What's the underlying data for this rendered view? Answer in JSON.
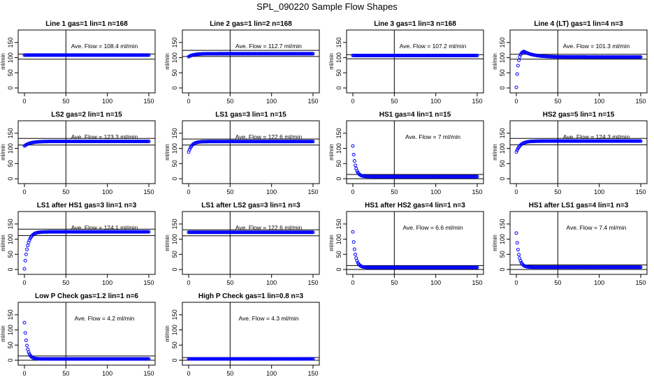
{
  "title": "SPL_090220  Sample Flow Shapes",
  "colors": {
    "points": "#0000ff",
    "axis": "#000000",
    "background": "#ffffff"
  },
  "chart_data": [
    {
      "type": "scatter",
      "title": "Line 1 gas=1 lin=1 n=168",
      "ylabel": "ml/min",
      "annotation": "Ave. Flow =  108.4  ml/min",
      "xlim": [
        0,
        150
      ],
      "ylim": [
        0,
        175
      ],
      "xticks": [
        0,
        50,
        100,
        150
      ],
      "yticks": [
        0,
        50,
        100,
        150
      ],
      "vline": 50,
      "hlines": [
        95,
        112
      ],
      "shape": "flat",
      "plateau": 108.4,
      "start": 108.4,
      "tau": 1
    },
    {
      "type": "scatter",
      "title": "Line 2 gas=1 lin=2 n=168",
      "ylabel": "ml/min",
      "annotation": "Ave. Flow =  112.7  ml/min",
      "xlim": [
        0,
        150
      ],
      "ylim": [
        0,
        175
      ],
      "xticks": [
        0,
        50,
        100,
        150
      ],
      "yticks": [
        0,
        50,
        100,
        150
      ],
      "vline": 50,
      "hlines": [
        104,
        124
      ],
      "shape": "rise",
      "plateau": 113,
      "start": 103,
      "tau": 6
    },
    {
      "type": "scatter",
      "title": "Line 3 gas=1 lin=3 n=168",
      "ylabel": "ml/min",
      "annotation": "Ave. Flow =  107.2  ml/min",
      "xlim": [
        0,
        150
      ],
      "ylim": [
        0,
        175
      ],
      "xticks": [
        0,
        50,
        100,
        150
      ],
      "yticks": [
        0,
        50,
        100,
        150
      ],
      "vline": 50,
      "hlines": [
        96,
        110
      ],
      "shape": "flat",
      "plateau": 107,
      "start": 107,
      "tau": 1
    },
    {
      "type": "scatter",
      "title": "Line 4 (LT) gas=1 lin=4 n=3",
      "ylabel": "ml/min",
      "annotation": "Ave. Flow =  101.3  ml/min",
      "xlim": [
        0,
        150
      ],
      "ylim": [
        0,
        175
      ],
      "xticks": [
        0,
        50,
        100,
        150
      ],
      "yticks": [
        0,
        50,
        100,
        150
      ],
      "vline": 50,
      "hlines": [
        95,
        111
      ],
      "shape": "overshoot",
      "plateau": 102,
      "start": 2,
      "peak": 122,
      "tau": 3
    },
    {
      "type": "scatter",
      "title": "LS2 gas=2 lin=1 n=15",
      "ylabel": "ml/min",
      "annotation": "Ave. Flow =  123.3  ml/min",
      "xlim": [
        0,
        150
      ],
      "ylim": [
        0,
        175
      ],
      "xticks": [
        0,
        50,
        100,
        150
      ],
      "yticks": [
        0,
        50,
        100,
        150
      ],
      "vline": 50,
      "hlines": [
        111,
        133
      ],
      "shape": "rise",
      "plateau": 123,
      "start": 108,
      "tau": 7
    },
    {
      "type": "scatter",
      "title": "LS1 gas=3 lin=1 n=15",
      "ylabel": "ml/min",
      "annotation": "Ave. Flow =  122.6  ml/min",
      "xlim": [
        0,
        150
      ],
      "ylim": [
        0,
        175
      ],
      "xticks": [
        0,
        50,
        100,
        150
      ],
      "yticks": [
        0,
        50,
        100,
        150
      ],
      "vline": 50,
      "hlines": [
        111,
        131
      ],
      "shape": "rise",
      "plateau": 122.6,
      "start": 88,
      "tau": 4
    },
    {
      "type": "scatter",
      "title": "HS1 gas=4 lin=1 n=15",
      "ylabel": "ml/min",
      "annotation": "Ave. Flow =  7  ml/min",
      "xlim": [
        0,
        150
      ],
      "ylim": [
        0,
        175
      ],
      "xticks": [
        0,
        50,
        100,
        150
      ],
      "yticks": [
        0,
        50,
        100,
        150
      ],
      "vline": 50,
      "hlines": [
        0,
        14
      ],
      "shape": "decay",
      "plateau": 7,
      "start": 108,
      "tau": 3
    },
    {
      "type": "scatter",
      "title": "HS2 gas=5 lin=1 n=15",
      "ylabel": "ml/min",
      "annotation": "Ave. Flow =  124.3  ml/min",
      "xlim": [
        0,
        150
      ],
      "ylim": [
        0,
        175
      ],
      "xticks": [
        0,
        50,
        100,
        150
      ],
      "yticks": [
        0,
        50,
        100,
        150
      ],
      "vline": 50,
      "hlines": [
        112,
        133
      ],
      "shape": "rise",
      "plateau": 124,
      "start": 88,
      "tau": 5
    },
    {
      "type": "scatter",
      "title": "LS1 after HS1 gas=3 lin=1 n=3",
      "ylabel": "ml/min",
      "annotation": "Ave. Flow =  124.1  ml/min",
      "xlim": [
        0,
        150
      ],
      "ylim": [
        0,
        175
      ],
      "xticks": [
        0,
        50,
        100,
        150
      ],
      "yticks": [
        0,
        50,
        100,
        150
      ],
      "vline": 50,
      "hlines": [
        112,
        133
      ],
      "shape": "rise",
      "plateau": 124,
      "start": 2,
      "tau": 4
    },
    {
      "type": "scatter",
      "title": "LS1 after LS2 gas=3 lin=1 n=3",
      "ylabel": "ml/min",
      "annotation": "Ave. Flow =  122.6  ml/min",
      "xlim": [
        0,
        150
      ],
      "ylim": [
        0,
        175
      ],
      "xticks": [
        0,
        50,
        100,
        150
      ],
      "yticks": [
        0,
        50,
        100,
        150
      ],
      "vline": 50,
      "hlines": [
        111,
        131
      ],
      "shape": "flat",
      "plateau": 122.6,
      "start": 122.6,
      "tau": 1
    },
    {
      "type": "scatter",
      "title": "HS1 after HS2 gas=4 lin=1 n=3",
      "ylabel": "ml/min",
      "annotation": "Ave. Flow =  6.6  ml/min",
      "xlim": [
        0,
        150
      ],
      "ylim": [
        0,
        175
      ],
      "xticks": [
        0,
        50,
        100,
        150
      ],
      "yticks": [
        0,
        50,
        100,
        150
      ],
      "vline": 50,
      "hlines": [
        0,
        13
      ],
      "shape": "decay",
      "plateau": 6.6,
      "start": 124,
      "tau": 3
    },
    {
      "type": "scatter",
      "title": "HS1 after LS1 gas=4 lin=1 n=3",
      "ylabel": "ml/min",
      "annotation": "Ave. Flow =  7.4  ml/min",
      "xlim": [
        0,
        150
      ],
      "ylim": [
        0,
        175
      ],
      "xticks": [
        0,
        50,
        100,
        150
      ],
      "yticks": [
        0,
        50,
        100,
        150
      ],
      "vline": 50,
      "hlines": [
        0,
        15
      ],
      "shape": "decay",
      "plateau": 7.4,
      "start": 120,
      "tau": 3
    },
    {
      "type": "scatter",
      "title": "Low P Check gas=1.2 lin=1 n=6",
      "ylabel": "ml/min",
      "annotation": "Ave. Flow =  4.2  ml/min",
      "xlim": [
        0,
        150
      ],
      "ylim": [
        0,
        175
      ],
      "xticks": [
        0,
        50,
        100,
        150
      ],
      "yticks": [
        0,
        50,
        100,
        150
      ],
      "vline": 50,
      "hlines": [
        0,
        14
      ],
      "shape": "decay",
      "plateau": 4.2,
      "start": 124,
      "tau": 3
    },
    {
      "type": "scatter",
      "title": "High P Check gas=1 lin=0.8 n=3",
      "ylabel": "ml/min",
      "annotation": "Ave. Flow =  4.3  ml/min",
      "xlim": [
        0,
        150
      ],
      "ylim": [
        0,
        175
      ],
      "xticks": [
        0,
        50,
        100,
        150
      ],
      "yticks": [
        0,
        50,
        100,
        150
      ],
      "vline": 50,
      "hlines": [
        0,
        9
      ],
      "shape": "flat",
      "plateau": 4.3,
      "start": 4.3,
      "tau": 1
    }
  ]
}
